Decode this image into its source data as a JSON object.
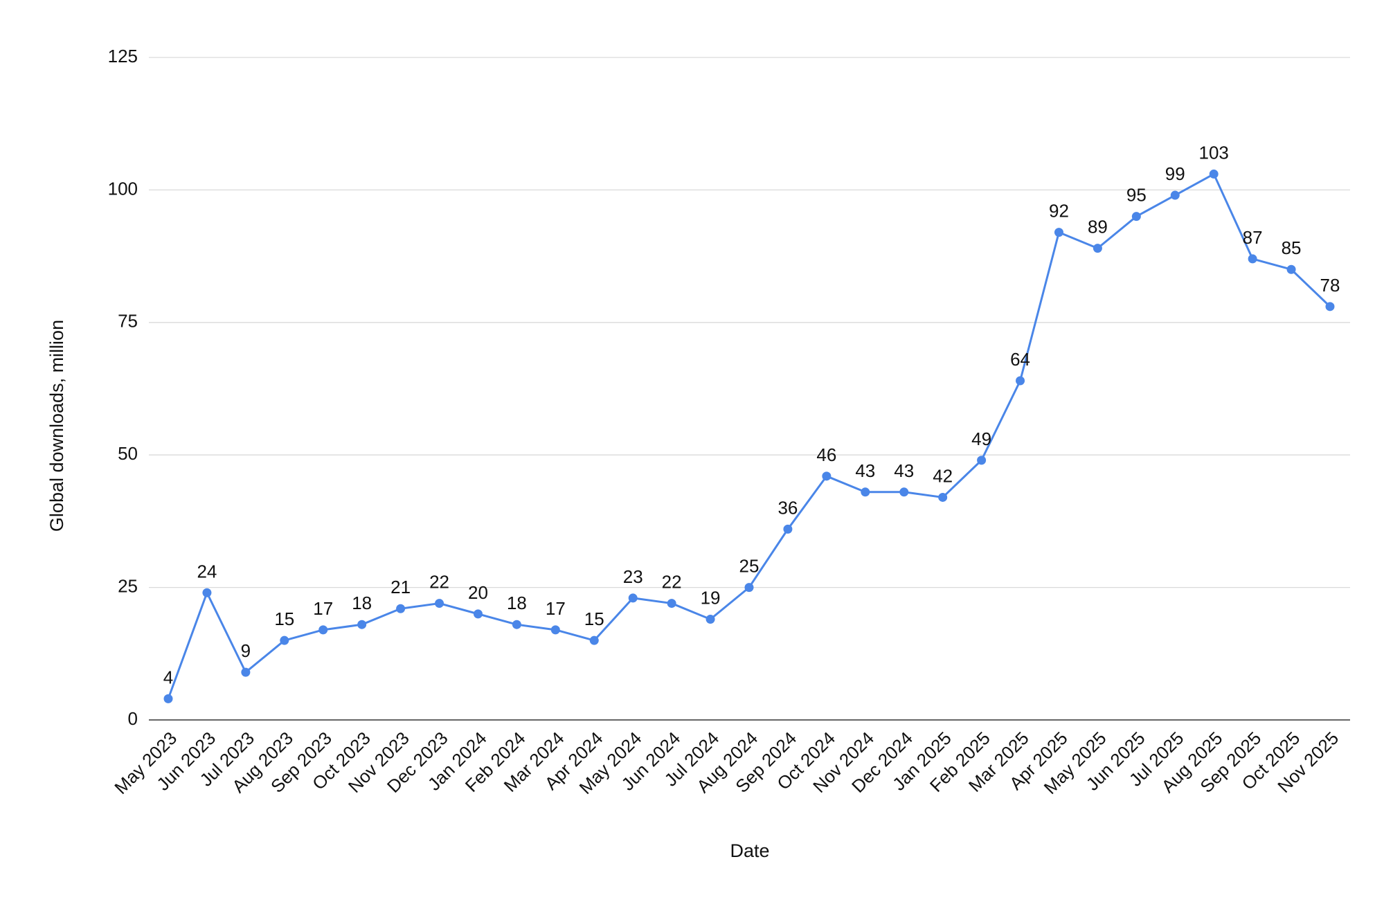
{
  "chart_data": {
    "type": "line",
    "title": "",
    "xlabel": "Date",
    "ylabel": "Global downloads, million",
    "ylim": [
      0,
      125
    ],
    "yticks": [
      0,
      25,
      50,
      75,
      100,
      125
    ],
    "grid": true,
    "data_labels": true,
    "line_color": "#4a86e8",
    "categories": [
      "May 2023",
      "Jun 2023",
      "Jul 2023",
      "Aug 2023",
      "Sep 2023",
      "Oct 2023",
      "Nov 2023",
      "Dec 2023",
      "Jan 2024",
      "Feb 2024",
      "Mar 2024",
      "Apr 2024",
      "May 2024",
      "Jun 2024",
      "Jul 2024",
      "Aug 2024",
      "Sep 2024",
      "Oct 2024",
      "Nov 2024",
      "Dec 2024",
      "Jan 2025",
      "Feb 2025",
      "Mar 2025",
      "Apr 2025",
      "May 2025",
      "Jun 2025",
      "Jul 2025",
      "Aug 2025",
      "Sep 2025",
      "Oct 2025",
      "Nov 2025"
    ],
    "series": [
      {
        "values": [
          4,
          24,
          9,
          15,
          17,
          18,
          21,
          22,
          20,
          18,
          17,
          15,
          23,
          22,
          19,
          25,
          36,
          46,
          43,
          43,
          42,
          49,
          64,
          92,
          89,
          95,
          99,
          103,
          87,
          85,
          78
        ]
      }
    ]
  }
}
